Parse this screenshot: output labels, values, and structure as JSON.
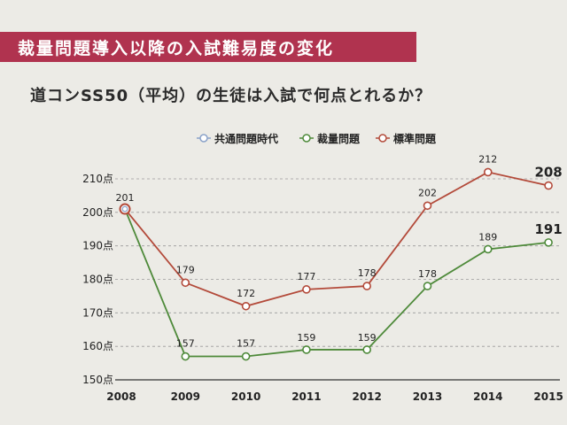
{
  "banner": {
    "title": "裁量問題導入以降の入試難易度の変化"
  },
  "chart_data": {
    "type": "line",
    "title": "道コンSS50（平均）の生徒は入試で何点とれるか？",
    "categories": [
      "2008",
      "2009",
      "2010",
      "2011",
      "2012",
      "2013",
      "2014",
      "2015"
    ],
    "series": [
      {
        "name": "共通問題時代",
        "color": "#8aa2c9",
        "values": [
          201,
          null,
          null,
          null,
          null,
          null,
          null,
          null
        ]
      },
      {
        "name": "裁量問題",
        "color": "#4e8a3a",
        "values": [
          201,
          157,
          157,
          159,
          159,
          178,
          189,
          191
        ]
      },
      {
        "name": "標準問題",
        "color": "#b34a3a",
        "values": [
          201,
          179,
          172,
          177,
          178,
          202,
          212,
          208
        ]
      }
    ],
    "ylim": [
      150,
      210
    ],
    "yticks": [
      {
        "value": 150,
        "label": "150点"
      },
      {
        "value": 160,
        "label": "160点"
      },
      {
        "value": 170,
        "label": "170点"
      },
      {
        "value": 180,
        "label": "180点"
      },
      {
        "value": 190,
        "label": "190点"
      },
      {
        "value": 200,
        "label": "200点"
      },
      {
        "value": 210,
        "label": "210点"
      }
    ],
    "xlabel": "",
    "ylabel": "",
    "legend_position": "top",
    "common_label": "201",
    "grid": true
  }
}
